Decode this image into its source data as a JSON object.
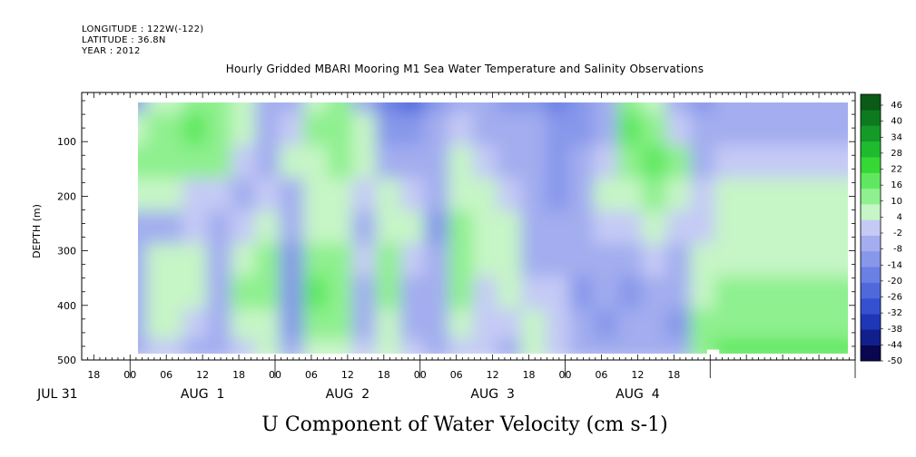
{
  "header": {
    "longitude": "LONGITUDE : 122W(-122)",
    "latitude": "LATITUDE : 36.8N",
    "year": "YEAR : 2012",
    "title": "Hourly Gridded MBARI Mooring M1 Sea Water Temperature and Salinity Observations"
  },
  "chart_data": {
    "type": "heatmap",
    "title": "Hourly Gridded MBARI Mooring M1 Sea Water Temperature and Salinity Observations",
    "xlabel": "U Component of Water Velocity (cm s-1)",
    "ylabel": "DEPTH (m)",
    "x_range_hours": [
      -8,
      120
    ],
    "x_range_note": "hours relative to 00 Aug 1 2012",
    "data_x_range_hours": [
      -3,
      119
    ],
    "ylim": [
      500,
      10
    ],
    "y_ticks": [
      100,
      200,
      300,
      400,
      500
    ],
    "x_tick_labels": [
      "18",
      "00",
      "06",
      "12",
      "18",
      "00",
      "06",
      "12",
      "18",
      "00",
      "06",
      "12",
      "18",
      "00",
      "06",
      "12",
      "18"
    ],
    "x_tick_hours": [
      -6,
      0,
      6,
      12,
      18,
      24,
      30,
      36,
      42,
      48,
      54,
      60,
      66,
      72,
      78,
      84,
      90
    ],
    "date_labels": [
      "JUL 31",
      "AUG  1",
      "AUG  2",
      "AUG  3",
      "AUG  4"
    ],
    "date_label_hours": [
      -12,
      12,
      36,
      60,
      84
    ],
    "colorbar": {
      "levels": [
        -50,
        -44,
        -38,
        -32,
        -26,
        -20,
        -14,
        -8,
        -2,
        4,
        10,
        16,
        22,
        28,
        34,
        40,
        46
      ],
      "labels": [
        "46",
        "40",
        "34",
        "28",
        "22",
        "16",
        "10",
        "4",
        "-2",
        "-8",
        "-14",
        "-20",
        "-26",
        "-32",
        "-38",
        "-44",
        "-50"
      ]
    },
    "field_columns": [
      {
        "hour": -3,
        "profile": [
          -10,
          6,
          10,
          8,
          -4,
          -6,
          -8,
          -6,
          -4
        ]
      },
      {
        "hour": 3,
        "profile": [
          6,
          14,
          12,
          4,
          -4,
          4,
          8,
          4,
          -2
        ]
      },
      {
        "hour": 9,
        "profile": [
          10,
          16,
          14,
          2,
          -2,
          6,
          8,
          2,
          -4
        ]
      },
      {
        "hour": 13,
        "profile": [
          12,
          12,
          10,
          -2,
          -4,
          -6,
          -8,
          -6,
          -4
        ]
      },
      {
        "hour": 17,
        "profile": [
          4,
          6,
          2,
          -6,
          -2,
          6,
          10,
          6,
          2
        ]
      },
      {
        "hour": 21,
        "profile": [
          -8,
          -4,
          -4,
          -2,
          4,
          10,
          12,
          8,
          4
        ]
      },
      {
        "hour": 25,
        "profile": [
          -6,
          2,
          6,
          -4,
          -8,
          -12,
          -14,
          -10,
          -6
        ]
      },
      {
        "hour": 29,
        "profile": [
          6,
          10,
          8,
          4,
          6,
          14,
          16,
          12,
          8
        ]
      },
      {
        "hour": 33,
        "profile": [
          10,
          14,
          12,
          6,
          8,
          12,
          14,
          10,
          6
        ]
      },
      {
        "hour": 37,
        "profile": [
          -6,
          4,
          8,
          2,
          -4,
          -2,
          -6,
          -4,
          -2
        ]
      },
      {
        "hour": 41,
        "profile": [
          -18,
          -10,
          -4,
          4,
          8,
          12,
          10,
          6,
          4
        ]
      },
      {
        "hour": 45,
        "profile": [
          -22,
          -14,
          -6,
          2,
          4,
          -2,
          -6,
          -4,
          -2
        ]
      },
      {
        "hour": 49,
        "profile": [
          -12,
          -8,
          -4,
          -8,
          -10,
          -8,
          -6,
          -4,
          -4
        ]
      },
      {
        "hour": 53,
        "profile": [
          -4,
          2,
          4,
          6,
          10,
          14,
          10,
          6,
          2
        ]
      },
      {
        "hour": 57,
        "profile": [
          -8,
          -6,
          2,
          4,
          6,
          4,
          2,
          0,
          -2
        ]
      },
      {
        "hour": 61,
        "profile": [
          -10,
          -8,
          -4,
          -2,
          4,
          8,
          6,
          2,
          -4
        ]
      },
      {
        "hour": 65,
        "profile": [
          -12,
          -6,
          -6,
          -8,
          -6,
          -4,
          -2,
          4,
          8
        ]
      },
      {
        "hour": 69,
        "profile": [
          -16,
          -14,
          -12,
          -10,
          -8,
          -4,
          -2,
          0,
          2
        ]
      },
      {
        "hour": 73,
        "profile": [
          -14,
          -10,
          -8,
          -6,
          -4,
          -6,
          -10,
          -8,
          -6
        ]
      },
      {
        "hour": 77,
        "profile": [
          -6,
          -4,
          2,
          4,
          2,
          -4,
          -8,
          -10,
          -8
        ]
      },
      {
        "hour": 81,
        "profile": [
          10,
          16,
          14,
          6,
          0,
          -6,
          -10,
          -8,
          -6
        ]
      },
      {
        "hour": 85,
        "profile": [
          8,
          12,
          16,
          10,
          4,
          -2,
          -6,
          -8,
          -6
        ]
      },
      {
        "hour": 89,
        "profile": [
          -6,
          0,
          10,
          8,
          2,
          -4,
          -8,
          -10,
          -8
        ]
      },
      {
        "hour": 93,
        "profile": [
          -12,
          -8,
          -4,
          -2,
          2,
          6,
          8,
          10,
          12
        ]
      },
      {
        "hour": 97,
        "profile": [
          -8,
          -4,
          0,
          4,
          6,
          8,
          12,
          14,
          16
        ]
      }
    ],
    "profile_depths": [
      20,
      80,
      140,
      200,
      260,
      320,
      380,
      440,
      490
    ],
    "grid": false
  }
}
